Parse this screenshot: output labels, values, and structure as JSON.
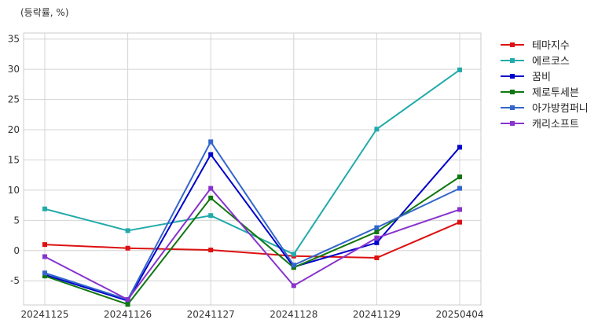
{
  "chart_data": {
    "type": "line",
    "unit_label": "(등락률, %)",
    "categories": [
      "20241125",
      "20241126",
      "20241127",
      "20241128",
      "20241129",
      "20250404"
    ],
    "ylim": [
      -9,
      36
    ],
    "yticks": [
      -5,
      0,
      5,
      10,
      15,
      20,
      25,
      30,
      35
    ],
    "grid": true,
    "legend_position": "right-top outside",
    "series": [
      {
        "name": "테마지수",
        "color": "#dd1111",
        "values": [
          1.0,
          0.4,
          0.1,
          -0.9,
          -1.2,
          4.7
        ]
      },
      {
        "name": "에르코스",
        "color": "#22aaaa",
        "values": [
          6.9,
          3.3,
          5.8,
          -0.6,
          20.1,
          29.9
        ]
      },
      {
        "name": "꿈비",
        "color": "#0000cc",
        "values": [
          -4.0,
          -8.3,
          15.9,
          -2.7,
          1.3,
          17.1
        ]
      },
      {
        "name": "제로투세븐",
        "color": "#117711",
        "values": [
          -4.2,
          -8.9,
          8.7,
          -2.8,
          3.1,
          12.2
        ]
      },
      {
        "name": "아가방컴퍼니",
        "color": "#3366cc",
        "values": [
          -3.7,
          -8.1,
          18.0,
          -2.4,
          3.8,
          10.3
        ]
      },
      {
        "name": "캐리소프트",
        "color": "#8833cc",
        "values": [
          -1.0,
          -8.1,
          10.3,
          -5.8,
          2.1,
          6.8
        ]
      }
    ]
  }
}
